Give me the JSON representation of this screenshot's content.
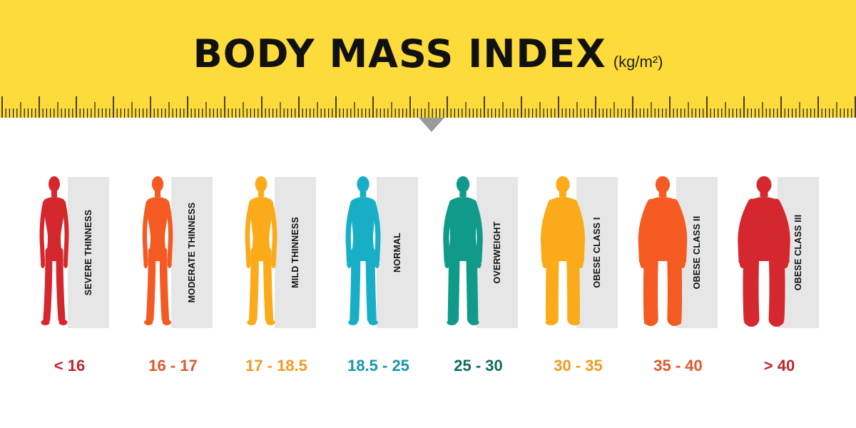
{
  "header": {
    "title": "BODY MASS INDEX",
    "unit": "(kg/m²)",
    "banner_color": "#FDDB3A"
  },
  "categories": [
    {
      "label": "SEVERE THINNESS",
      "range": "< 16",
      "color": "#D4282E",
      "text_color": "#C0262C",
      "build": 0.0
    },
    {
      "label": "MODERATE THINNESS",
      "range": "16 - 17",
      "color": "#F45A22",
      "text_color": "#E0582A",
      "build": 0.05
    },
    {
      "label": "MILD THINNESS",
      "range": "17 - 18.5",
      "color": "#FBAA19",
      "text_color": "#F39A1E",
      "build": 0.12
    },
    {
      "label": "NORMAL",
      "range": "18.5 - 25",
      "color": "#18AFC6",
      "text_color": "#1696AE",
      "build": 0.25
    },
    {
      "label": "OVERWEIGHT",
      "range": "25 - 30",
      "color": "#0F9A89",
      "text_color": "#0D6E60",
      "build": 0.45
    },
    {
      "label": "OBESE CLASS I",
      "range": "30 - 35",
      "color": "#FBAA19",
      "text_color": "#F39A1E",
      "build": 0.65
    },
    {
      "label": "OBESE CLASS II",
      "range": "35 - 40",
      "color": "#F45A22",
      "text_color": "#E0582A",
      "build": 0.85
    },
    {
      "label": "OBESE CLASS III",
      "range": "> 40",
      "color": "#D4282E",
      "text_color": "#C0262C",
      "build": 1.0
    }
  ]
}
